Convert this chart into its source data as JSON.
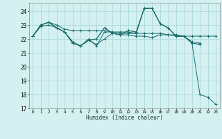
{
  "title": "",
  "xlabel": "Humidex (Indice chaleur)",
  "ylabel": "",
  "bg_color": "#d4f0f0",
  "grid_color": "#aadada",
  "line_color": "#1a6b6b",
  "xlim": [
    -0.5,
    23.5
  ],
  "ylim": [
    17,
    24.6
  ],
  "yticks": [
    17,
    18,
    19,
    20,
    21,
    22,
    23,
    24
  ],
  "xticks": [
    0,
    1,
    2,
    3,
    4,
    5,
    6,
    7,
    8,
    9,
    10,
    11,
    12,
    13,
    14,
    15,
    16,
    17,
    18,
    19,
    20,
    21,
    22,
    23
  ],
  "series": [
    {
      "x": [
        0,
        1,
        2,
        3,
        4,
        5,
        6,
        7,
        8,
        9,
        10,
        11,
        12,
        13,
        14,
        15,
        16,
        17,
        18,
        19,
        20,
        21,
        22,
        23
      ],
      "y": [
        22.2,
        23.0,
        23.2,
        23.0,
        22.7,
        22.6,
        22.6,
        22.6,
        22.6,
        22.6,
        22.5,
        22.5,
        22.5,
        22.4,
        22.4,
        22.4,
        22.4,
        22.3,
        22.3,
        22.2,
        22.2,
        22.2,
        22.2,
        22.2
      ]
    },
    {
      "x": [
        0,
        1,
        2,
        3,
        4,
        5,
        6,
        7,
        8,
        9,
        10,
        11,
        12,
        13,
        14,
        15,
        16,
        17,
        18,
        19,
        20,
        21
      ],
      "y": [
        22.2,
        23.0,
        23.2,
        22.8,
        22.5,
        21.7,
        21.5,
        21.9,
        21.6,
        22.0,
        22.4,
        22.3,
        22.3,
        22.2,
        22.2,
        22.1,
        22.3,
        22.3,
        22.2,
        22.2,
        21.7,
        21.6
      ]
    },
    {
      "x": [
        0,
        1,
        2,
        3,
        4,
        5,
        6,
        7,
        8,
        9,
        10,
        11,
        12,
        13,
        14,
        15,
        16,
        17,
        18,
        19,
        20,
        21,
        22,
        23
      ],
      "y": [
        22.2,
        23.0,
        23.2,
        22.8,
        22.5,
        21.8,
        21.5,
        22.0,
        21.5,
        22.5,
        22.5,
        22.4,
        22.4,
        22.4,
        24.2,
        24.2,
        23.1,
        22.8,
        22.2,
        22.2,
        21.7,
        18.0,
        17.8,
        17.3
      ]
    },
    {
      "x": [
        0,
        1,
        2,
        3,
        4,
        5,
        6,
        7,
        8,
        9,
        10,
        11,
        12,
        13,
        14,
        15,
        16,
        17,
        18,
        19,
        20,
        21
      ],
      "y": [
        22.2,
        23.0,
        23.2,
        22.8,
        22.5,
        21.7,
        21.5,
        21.9,
        22.0,
        22.8,
        22.4,
        22.3,
        22.6,
        22.5,
        24.2,
        24.2,
        23.1,
        22.8,
        22.2,
        22.2,
        21.8,
        21.7
      ]
    },
    {
      "x": [
        0,
        1,
        2,
        3,
        4,
        5,
        6,
        7,
        8,
        9,
        10,
        11,
        12,
        13,
        14,
        15,
        16,
        17,
        18,
        19,
        20,
        21
      ],
      "y": [
        22.2,
        22.9,
        23.0,
        22.8,
        22.5,
        21.7,
        21.5,
        21.9,
        22.0,
        22.8,
        22.4,
        22.3,
        22.6,
        22.5,
        24.2,
        24.2,
        23.1,
        22.8,
        22.2,
        22.2,
        21.7,
        21.6
      ]
    }
  ]
}
